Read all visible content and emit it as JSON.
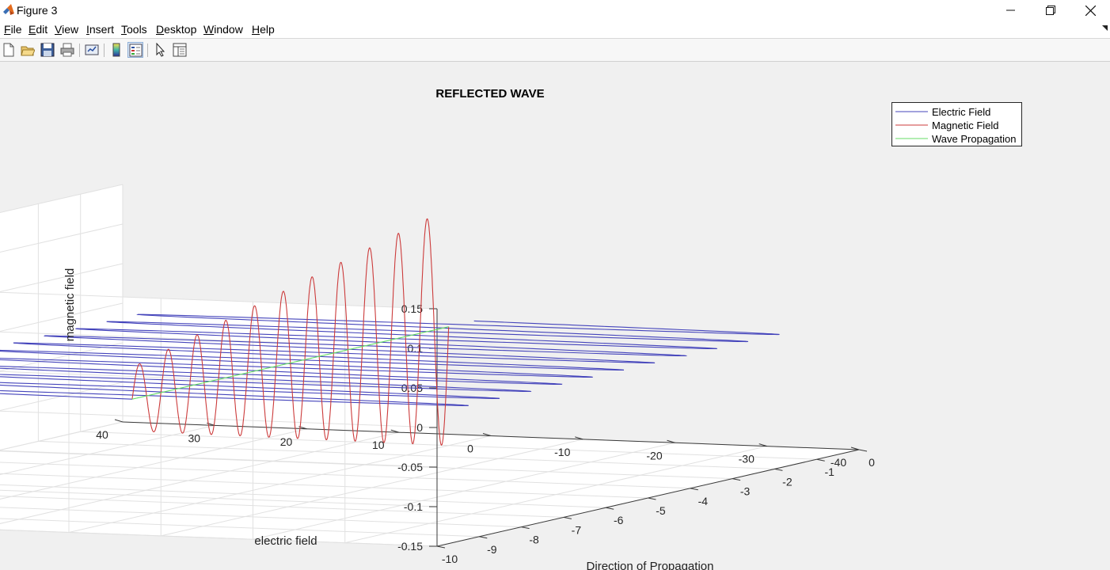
{
  "window": {
    "title": "Figure 3",
    "icon": "matlab-icon",
    "controls": [
      "minimize-icon",
      "restore-icon",
      "close-icon"
    ]
  },
  "menu": [
    {
      "mnemonic": "F",
      "rest": "ile"
    },
    {
      "mnemonic": "E",
      "rest": "dit"
    },
    {
      "mnemonic": "V",
      "rest": "iew"
    },
    {
      "mnemonic": "I",
      "rest": "nsert"
    },
    {
      "mnemonic": "T",
      "rest": "ools"
    },
    {
      "mnemonic": "D",
      "rest": "esktop"
    },
    {
      "mnemonic": "W",
      "rest": "indow"
    },
    {
      "mnemonic": "H",
      "rest": "elp"
    }
  ],
  "toolbar": [
    "new-figure-icon",
    "open-file-icon",
    "save-icon",
    "print-icon",
    "link-plot-icon",
    "colorbar-icon",
    "legend-icon",
    "edit-plot-icon",
    "property-inspector-icon"
  ],
  "colors": {
    "electric": "#4444bb",
    "magnetic": "#cc3b3b",
    "propagation": "#66dd66"
  },
  "chart_data": {
    "type": "line",
    "dimensions": 3,
    "title": "REFLECTED WAVE",
    "xlabel": "Direction of Propagation",
    "ylabel": "electric field",
    "zlabel": "magnetic field",
    "xlim": [
      -10,
      0
    ],
    "ylim": [
      -40,
      40
    ],
    "zlim": [
      -0.15,
      0.15
    ],
    "xticks": [
      "-10",
      "-9",
      "-8",
      "-7",
      "-6",
      "-5",
      "-4",
      "-3",
      "-2",
      "-1",
      "0"
    ],
    "yticks": [
      "-40",
      "-30",
      "-20",
      "-10",
      "0",
      "10",
      "20",
      "30",
      "40"
    ],
    "zticks": [
      "-0.15",
      "-0.1",
      "-0.05",
      "0",
      "0.05",
      "0.1",
      "0.15"
    ],
    "grid": true,
    "legend": {
      "position": "top-right",
      "entries": [
        "Electric Field",
        "Magnetic Field",
        "Wave Propagation"
      ]
    },
    "series": [
      {
        "name": "Electric Field",
        "description": "sinusoid in the electric-field direction, constant amplitude",
        "x_range": [
          -8.5,
          -0.4
        ],
        "amplitude": 34,
        "cycles": 11
      },
      {
        "name": "Magnetic Field",
        "description": "sinusoid in the magnetic-field direction, amplitude growing toward x=0",
        "x_range": [
          -8.5,
          -1.0
        ],
        "amplitude_start": 0.04,
        "amplitude_end": 0.15,
        "cycles": 11
      },
      {
        "name": "Wave Propagation",
        "description": "straight line along the propagation axis",
        "x_range": [
          -8.5,
          -1.0
        ],
        "y": 0,
        "z": 0
      }
    ]
  }
}
